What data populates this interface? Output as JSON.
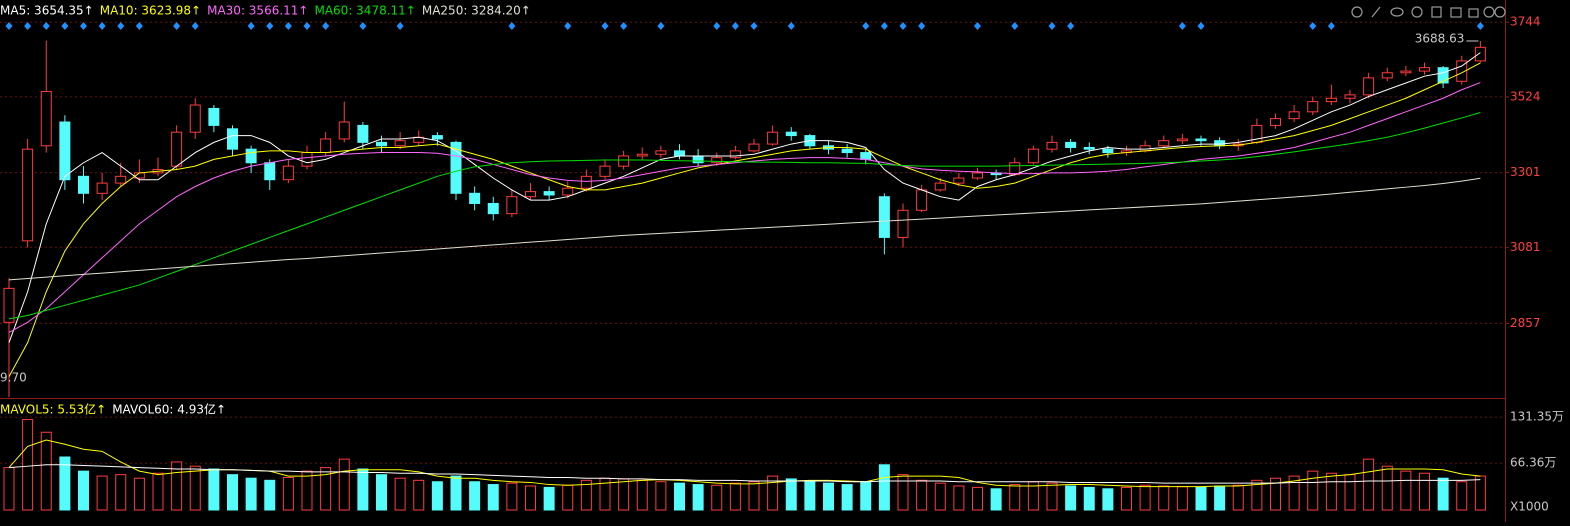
{
  "chart_data": [
    {
      "type": "candlestick",
      "up_color": "#ff3c3c",
      "down_color": "#54fcfc",
      "ylim": [
        2637,
        3777
      ],
      "yticks": [
        3744,
        3524,
        3301,
        3081,
        2857
      ],
      "grid": true,
      "high_mark": 3688.63,
      "low_label": "9.70",
      "signals": [
        0,
        1,
        2,
        3,
        4,
        5,
        6,
        7,
        9,
        10,
        13,
        14,
        15,
        16,
        17,
        19,
        21,
        27,
        30,
        32,
        33,
        35,
        38,
        39,
        40,
        42,
        46,
        47,
        48,
        49,
        52,
        54,
        56,
        57,
        63,
        64,
        70,
        71,
        79
      ],
      "signal_color": "#1e90ff",
      "ohlc": [
        [
          2860,
          2990,
          2639.7,
          2960
        ],
        [
          3100,
          3400,
          3080,
          3370
        ],
        [
          3380,
          3690,
          3360,
          3540
        ],
        [
          3450,
          3470,
          3250,
          3280
        ],
        [
          3290,
          3320,
          3210,
          3240
        ],
        [
          3240,
          3300,
          3220,
          3270
        ],
        [
          3270,
          3330,
          3260,
          3290
        ],
        [
          3285,
          3340,
          3270,
          3300
        ],
        [
          3300,
          3345,
          3290,
          3310
        ],
        [
          3320,
          3440,
          3310,
          3420
        ],
        [
          3420,
          3520,
          3400,
          3500
        ],
        [
          3490,
          3500,
          3420,
          3440
        ],
        [
          3430,
          3440,
          3350,
          3370
        ],
        [
          3370,
          3380,
          3300,
          3330
        ],
        [
          3330,
          3340,
          3250,
          3280
        ],
        [
          3280,
          3340,
          3270,
          3320
        ],
        [
          3320,
          3380,
          3310,
          3360
        ],
        [
          3360,
          3420,
          3350,
          3400
        ],
        [
          3400,
          3510,
          3390,
          3450
        ],
        [
          3440,
          3450,
          3370,
          3390
        ],
        [
          3390,
          3410,
          3360,
          3380
        ],
        [
          3380,
          3420,
          3370,
          3395
        ],
        [
          3390,
          3425,
          3380,
          3405
        ],
        [
          3410,
          3420,
          3380,
          3400
        ],
        [
          3390,
          3395,
          3220,
          3240
        ],
        [
          3240,
          3260,
          3190,
          3210
        ],
        [
          3210,
          3230,
          3160,
          3180
        ],
        [
          3180,
          3250,
          3170,
          3230
        ],
        [
          3230,
          3270,
          3220,
          3245
        ],
        [
          3245,
          3260,
          3220,
          3235
        ],
        [
          3235,
          3275,
          3225,
          3255
        ],
        [
          3255,
          3310,
          3245,
          3290
        ],
        [
          3290,
          3340,
          3280,
          3320
        ],
        [
          3320,
          3365,
          3310,
          3350
        ],
        [
          3350,
          3375,
          3340,
          3355
        ],
        [
          3355,
          3380,
          3345,
          3365
        ],
        [
          3365,
          3385,
          3340,
          3350
        ],
        [
          3350,
          3370,
          3320,
          3330
        ],
        [
          3330,
          3360,
          3320,
          3345
        ],
        [
          3345,
          3380,
          3340,
          3365
        ],
        [
          3365,
          3400,
          3360,
          3385
        ],
        [
          3385,
          3440,
          3380,
          3420
        ],
        [
          3420,
          3435,
          3395,
          3410
        ],
        [
          3410,
          3415,
          3370,
          3380
        ],
        [
          3380,
          3395,
          3355,
          3370
        ],
        [
          3370,
          3385,
          3345,
          3360
        ],
        [
          3360,
          3370,
          3325,
          3340
        ],
        [
          3230,
          3240,
          3060,
          3110
        ],
        [
          3110,
          3210,
          3080,
          3190
        ],
        [
          3190,
          3265,
          3185,
          3250
        ],
        [
          3250,
          3285,
          3245,
          3270
        ],
        [
          3270,
          3300,
          3260,
          3285
        ],
        [
          3285,
          3315,
          3280,
          3300
        ],
        [
          3300,
          3310,
          3280,
          3295
        ],
        [
          3295,
          3345,
          3290,
          3330
        ],
        [
          3330,
          3380,
          3325,
          3370
        ],
        [
          3370,
          3410,
          3360,
          3390
        ],
        [
          3390,
          3400,
          3360,
          3375
        ],
        [
          3375,
          3390,
          3355,
          3370
        ],
        [
          3370,
          3380,
          3345,
          3360
        ],
        [
          3360,
          3380,
          3350,
          3365
        ],
        [
          3365,
          3395,
          3360,
          3380
        ],
        [
          3380,
          3410,
          3375,
          3395
        ],
        [
          3395,
          3415,
          3385,
          3400
        ],
        [
          3400,
          3410,
          3380,
          3395
        ],
        [
          3395,
          3405,
          3370,
          3380
        ],
        [
          3380,
          3400,
          3365,
          3385
        ],
        [
          3390,
          3460,
          3385,
          3440
        ],
        [
          3440,
          3475,
          3430,
          3460
        ],
        [
          3460,
          3500,
          3450,
          3480
        ],
        [
          3480,
          3525,
          3470,
          3510
        ],
        [
          3510,
          3560,
          3500,
          3520
        ],
        [
          3520,
          3545,
          3505,
          3530
        ],
        [
          3530,
          3595,
          3520,
          3580
        ],
        [
          3580,
          3610,
          3570,
          3595
        ],
        [
          3595,
          3615,
          3585,
          3600
        ],
        [
          3600,
          3625,
          3590,
          3610
        ],
        [
          3610,
          3615,
          3550,
          3565
        ],
        [
          3570,
          3645,
          3560,
          3630
        ],
        [
          3630,
          3688.63,
          3625,
          3670
        ]
      ],
      "lines": [
        {
          "name": "MA5: 3654.35↑",
          "color": "#ffffff",
          "values": [
            2800,
            2950,
            3150,
            3290,
            3330,
            3360,
            3320,
            3280,
            3280,
            3320,
            3360,
            3390,
            3410,
            3410,
            3390,
            3350,
            3330,
            3340,
            3360,
            3380,
            3400,
            3400,
            3405,
            3395,
            3365,
            3325,
            3285,
            3250,
            3220,
            3220,
            3230,
            3250,
            3270,
            3290,
            3315,
            3340,
            3350,
            3350,
            3350,
            3350,
            3355,
            3370,
            3385,
            3395,
            3395,
            3390,
            3375,
            3310,
            3270,
            3250,
            3230,
            3220,
            3260,
            3280,
            3295,
            3315,
            3335,
            3350,
            3365,
            3375,
            3370,
            3370,
            3375,
            3380,
            3385,
            3385,
            3390,
            3400,
            3410,
            3430,
            3455,
            3480,
            3500,
            3525,
            3545,
            3565,
            3585,
            3595,
            3615,
            3654.35
          ]
        },
        {
          "name": "MA10: 3623.98↑",
          "color": "#ffff00",
          "values": [
            2700,
            2800,
            2950,
            3070,
            3150,
            3210,
            3260,
            3300,
            3305,
            3310,
            3320,
            3340,
            3350,
            3360,
            3365,
            3365,
            3360,
            3360,
            3365,
            3370,
            3375,
            3375,
            3380,
            3385,
            3370,
            3355,
            3340,
            3320,
            3300,
            3280,
            3260,
            3250,
            3250,
            3260,
            3270,
            3285,
            3300,
            3315,
            3325,
            3335,
            3345,
            3355,
            3365,
            3370,
            3375,
            3375,
            3370,
            3345,
            3320,
            3300,
            3280,
            3265,
            3255,
            3260,
            3270,
            3290,
            3310,
            3330,
            3345,
            3355,
            3360,
            3365,
            3370,
            3375,
            3378,
            3380,
            3382,
            3390,
            3400,
            3410,
            3425,
            3440,
            3460,
            3480,
            3500,
            3520,
            3545,
            3570,
            3595,
            3623.98
          ]
        },
        {
          "name": "MA30: 3566.11↑",
          "color": "#ff66ff",
          "values": [
            2830,
            2860,
            2900,
            2950,
            3000,
            3050,
            3100,
            3150,
            3190,
            3230,
            3260,
            3285,
            3305,
            3320,
            3330,
            3340,
            3345,
            3350,
            3355,
            3358,
            3360,
            3360,
            3360,
            3358,
            3350,
            3340,
            3325,
            3310,
            3295,
            3285,
            3278,
            3275,
            3278,
            3285,
            3295,
            3305,
            3315,
            3320,
            3325,
            3330,
            3335,
            3340,
            3343,
            3345,
            3345,
            3343,
            3340,
            3330,
            3320,
            3312,
            3308,
            3305,
            3303,
            3300,
            3298,
            3298,
            3300,
            3300,
            3302,
            3305,
            3310,
            3318,
            3325,
            3332,
            3340,
            3345,
            3350,
            3358,
            3365,
            3375,
            3390,
            3405,
            3420,
            3440,
            3460,
            3480,
            3500,
            3520,
            3545,
            3566.11
          ]
        },
        {
          "name": "MA60: 3478.11↑",
          "color": "#00e000",
          "values": [
            2870,
            2880,
            2895,
            2910,
            2925,
            2940,
            2955,
            2970,
            2990,
            3010,
            3030,
            3050,
            3070,
            3090,
            3110,
            3130,
            3150,
            3170,
            3190,
            3210,
            3230,
            3250,
            3270,
            3290,
            3305,
            3318,
            3325,
            3330,
            3333,
            3335,
            3336,
            3337,
            3338,
            3338,
            3338,
            3337,
            3336,
            3335,
            3334,
            3333,
            3332,
            3332,
            3331,
            3330,
            3330,
            3329,
            3328,
            3325,
            3322,
            3320,
            3320,
            3320,
            3320,
            3320,
            3321,
            3322,
            3323,
            3324,
            3325,
            3326,
            3327,
            3328,
            3330,
            3332,
            3335,
            3338,
            3342,
            3348,
            3355,
            3362,
            3370,
            3378,
            3386,
            3395,
            3405,
            3418,
            3432,
            3447,
            3462,
            3478.11
          ]
        },
        {
          "name": "MA250: 3284.20↑",
          "color": "#e0e0d0",
          "values": [
            2985,
            2989,
            2993,
            2997,
            3001,
            3005,
            3009,
            3013,
            3017,
            3021,
            3025,
            3029,
            3033,
            3037,
            3041,
            3045,
            3048,
            3052,
            3056,
            3060,
            3064,
            3068,
            3072,
            3076,
            3080,
            3084,
            3088,
            3092,
            3096,
            3100,
            3104,
            3108,
            3112,
            3116,
            3119,
            3122,
            3125,
            3128,
            3131,
            3134,
            3137,
            3140,
            3143,
            3146,
            3149,
            3152,
            3155,
            3158,
            3161,
            3164,
            3167,
            3170,
            3173,
            3176,
            3179,
            3182,
            3185,
            3188,
            3191,
            3194,
            3197,
            3200,
            3203,
            3206,
            3209,
            3213,
            3217,
            3221,
            3225,
            3229,
            3233,
            3238,
            3243,
            3248,
            3253,
            3258,
            3263,
            3269,
            3276,
            3284.2
          ]
        }
      ]
    },
    {
      "type": "bar",
      "ylim": [
        0,
        150
      ],
      "yticks": [
        {
          "value": 131.35,
          "label": "131.35万"
        },
        {
          "value": 66.36,
          "label": "66.36万"
        }
      ],
      "unit_label": "X1000",
      "values": [
        60,
        128,
        110,
        75,
        55,
        48,
        50,
        45,
        52,
        68,
        62,
        58,
        50,
        45,
        42,
        46,
        55,
        60,
        72,
        58,
        50,
        45,
        42,
        40,
        48,
        40,
        36,
        38,
        34,
        32,
        35,
        42,
        45,
        44,
        42,
        40,
        38,
        36,
        35,
        38,
        40,
        48,
        44,
        40,
        38,
        36,
        40,
        64,
        50,
        42,
        38,
        34,
        32,
        30,
        36,
        40,
        38,
        34,
        32,
        30,
        32,
        35,
        34,
        33,
        32,
        34,
        35,
        42,
        45,
        48,
        55,
        52,
        50,
        72,
        62,
        55,
        52,
        45,
        40,
        48
      ],
      "lines": [
        {
          "name": "MAVOL5: 5.53亿↑",
          "color": "#ffff00",
          "values": [
            60,
            90,
            99,
            93,
            86,
            83,
            68,
            55,
            50,
            53,
            55,
            57,
            57,
            56,
            55,
            48,
            48,
            50,
            55,
            57,
            57,
            57,
            54,
            48,
            45,
            45,
            42,
            40,
            39,
            36,
            35,
            36,
            38,
            40,
            42,
            43,
            42,
            40,
            38,
            37,
            37,
            39,
            41,
            42,
            42,
            41,
            40,
            46,
            48,
            48,
            48,
            46,
            39,
            35,
            34,
            34,
            35,
            36,
            36,
            35,
            34,
            33,
            33,
            33,
            33,
            34,
            34,
            36,
            38,
            41,
            45,
            48,
            50,
            54,
            58,
            58,
            58,
            57,
            51,
            48
          ]
        },
        {
          "name": "MAVOL60: 4.93亿↑",
          "color": "#ffffff",
          "values": [
            60,
            62,
            64,
            64,
            63,
            62,
            61,
            60,
            59,
            58,
            58,
            57,
            57,
            56,
            55,
            55,
            54,
            54,
            54,
            53,
            53,
            52,
            52,
            51,
            51,
            50,
            49,
            48,
            47,
            46,
            46,
            45,
            45,
            44,
            44,
            43,
            43,
            42,
            42,
            42,
            41,
            41,
            41,
            41,
            41,
            40,
            40,
            41,
            41,
            41,
            41,
            40,
            40,
            40,
            40,
            40,
            40,
            39,
            39,
            39,
            39,
            39,
            38,
            38,
            38,
            38,
            38,
            38,
            38,
            39,
            39,
            40,
            40,
            41,
            41,
            42,
            42,
            42,
            42,
            43
          ]
        }
      ]
    }
  ]
}
